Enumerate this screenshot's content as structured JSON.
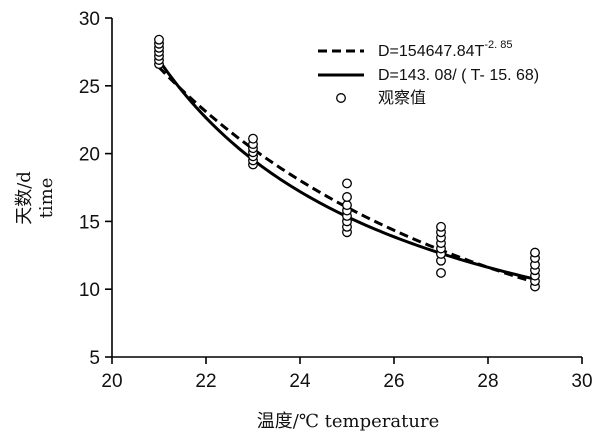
{
  "chart_data": {
    "type": "scatter",
    "title": "",
    "xlabel": "温度/℃   temperature",
    "ylabel_cn": "天数/d",
    "ylabel_en": "time",
    "xlim": [
      20,
      30
    ],
    "ylim": [
      5,
      30
    ],
    "x_ticks": [
      20,
      22,
      24,
      26,
      28,
      30
    ],
    "y_ticks": [
      5,
      10,
      15,
      20,
      25,
      30
    ],
    "grid": false,
    "legend_position": "top-right",
    "series": [
      {
        "name": "D=154647.84T",
        "name_exponent": "-2. 85",
        "kind": "line",
        "style": "dashed",
        "color": "#000000",
        "model": "power",
        "a": 154647.84,
        "b": -2.85
      },
      {
        "name": "D=143. 08/ ( T- 15. 68)",
        "kind": "line",
        "style": "solid",
        "color": "#000000",
        "model": "hyperbolic",
        "k": 143.08,
        "t0": 15.68
      },
      {
        "name": "观察值",
        "kind": "scatter",
        "marker": "open-circle",
        "color": "#000000",
        "points": [
          {
            "x": 21,
            "y": 26.6
          },
          {
            "x": 21,
            "y": 26.9
          },
          {
            "x": 21,
            "y": 27.2
          },
          {
            "x": 21,
            "y": 27.5
          },
          {
            "x": 21,
            "y": 27.8
          },
          {
            "x": 21,
            "y": 28.1
          },
          {
            "x": 21,
            "y": 28.4
          },
          {
            "x": 23,
            "y": 19.2
          },
          {
            "x": 23,
            "y": 19.5
          },
          {
            "x": 23,
            "y": 19.8
          },
          {
            "x": 23,
            "y": 20.1
          },
          {
            "x": 23,
            "y": 20.4
          },
          {
            "x": 23,
            "y": 20.7
          },
          {
            "x": 23,
            "y": 21.1
          },
          {
            "x": 25,
            "y": 14.2
          },
          {
            "x": 25,
            "y": 14.6
          },
          {
            "x": 25,
            "y": 15.0
          },
          {
            "x": 25,
            "y": 15.4
          },
          {
            "x": 25,
            "y": 15.8
          },
          {
            "x": 25,
            "y": 16.2
          },
          {
            "x": 25,
            "y": 16.8
          },
          {
            "x": 25,
            "y": 17.8
          },
          {
            "x": 27,
            "y": 11.2
          },
          {
            "x": 27,
            "y": 12.1
          },
          {
            "x": 27,
            "y": 12.6
          },
          {
            "x": 27,
            "y": 13.0
          },
          {
            "x": 27,
            "y": 13.4
          },
          {
            "x": 27,
            "y": 13.8
          },
          {
            "x": 27,
            "y": 14.2
          },
          {
            "x": 27,
            "y": 14.6
          },
          {
            "x": 29,
            "y": 10.2
          },
          {
            "x": 29,
            "y": 10.6
          },
          {
            "x": 29,
            "y": 11.0
          },
          {
            "x": 29,
            "y": 11.4
          },
          {
            "x": 29,
            "y": 11.8
          },
          {
            "x": 29,
            "y": 12.3
          },
          {
            "x": 29,
            "y": 12.7
          }
        ]
      }
    ]
  }
}
